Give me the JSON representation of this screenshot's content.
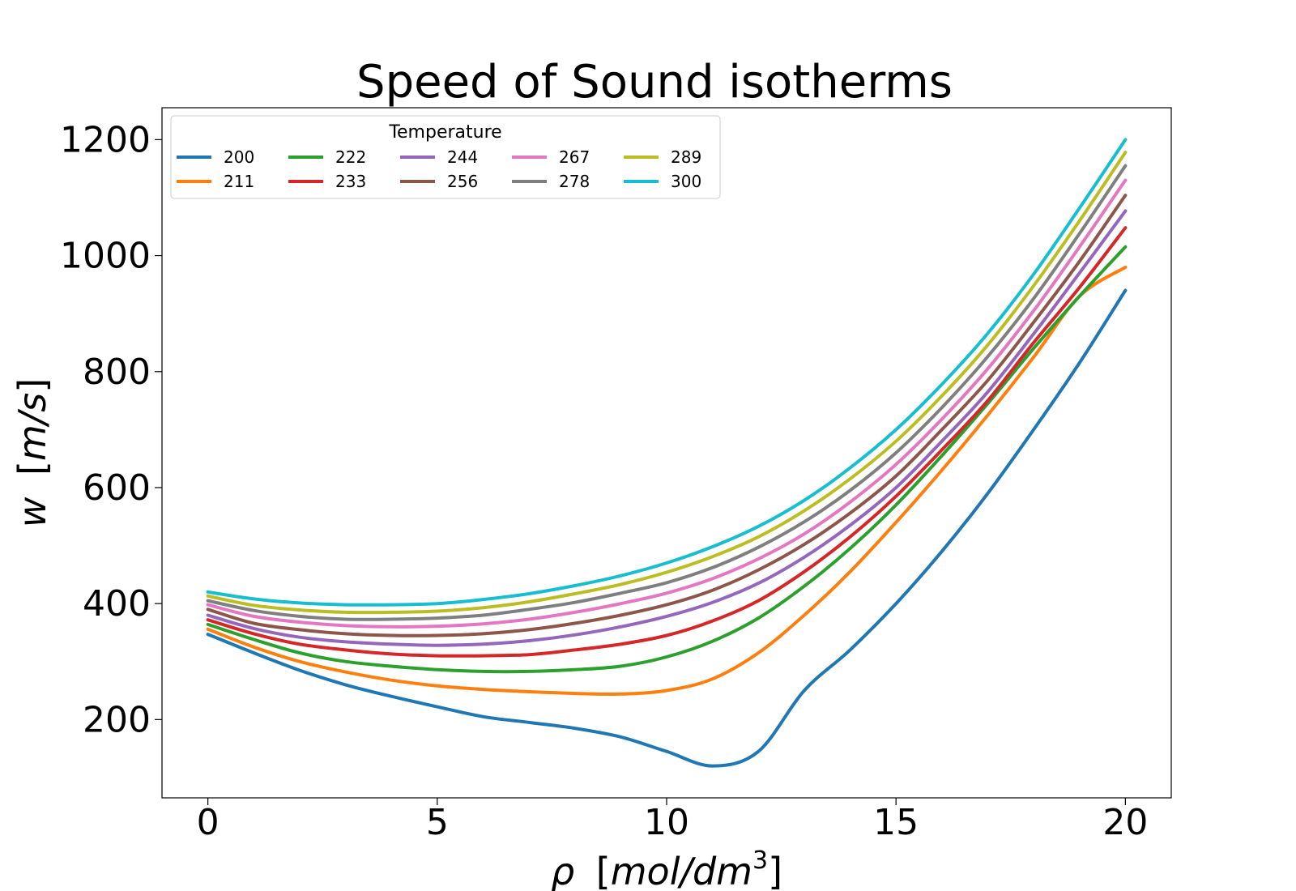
{
  "chart_data": {
    "type": "line",
    "title": "Speed of Sound isotherms",
    "xlabel": {
      "sym": "ρ",
      "unit_prefix": "[",
      "unit": "mol/dm",
      "sup": "3",
      "unit_suffix": "]"
    },
    "ylabel": {
      "sym": "w",
      "unit_prefix": "[",
      "unit": "m/s",
      "unit_suffix": "]"
    },
    "xlim": [
      -1,
      21
    ],
    "ylim": [
      65,
      1255
    ],
    "xticks": [
      0,
      5,
      10,
      15,
      20
    ],
    "yticks": [
      200,
      400,
      600,
      800,
      1000,
      1200
    ],
    "grid": false,
    "legend": {
      "title": "Temperature",
      "position": "top-left",
      "columns": 5
    },
    "x": [
      0,
      1,
      2,
      3,
      4,
      5,
      6,
      7,
      8,
      9,
      10,
      11,
      12,
      13,
      14,
      15,
      16,
      17,
      18,
      19,
      20
    ],
    "series": [
      {
        "name": "200",
        "color": "#1f77b4",
        "values": [
          347,
          315,
          285,
          260,
          240,
          222,
          205,
          195,
          185,
          170,
          145,
          120,
          145,
          250,
          320,
          400,
          490,
          590,
          700,
          815,
          940
        ]
      },
      {
        "name": "211",
        "color": "#ff7f0e",
        "values": [
          356,
          325,
          300,
          282,
          268,
          258,
          252,
          248,
          245,
          244,
          250,
          270,
          315,
          380,
          455,
          540,
          630,
          725,
          825,
          930,
          980
        ]
      },
      {
        "name": "222",
        "color": "#2ca02c",
        "values": [
          364,
          338,
          315,
          300,
          292,
          286,
          283,
          283,
          286,
          292,
          308,
          335,
          375,
          430,
          495,
          570,
          655,
          745,
          840,
          930,
          1015
        ]
      },
      {
        "name": "233",
        "color": "#d62728",
        "values": [
          372,
          348,
          330,
          320,
          313,
          310,
          310,
          312,
          320,
          330,
          345,
          370,
          405,
          455,
          515,
          585,
          665,
          750,
          850,
          945,
          1048
        ]
      },
      {
        "name": "244",
        "color": "#9467bd",
        "values": [
          380,
          357,
          342,
          334,
          330,
          328,
          330,
          336,
          346,
          360,
          378,
          402,
          435,
          480,
          535,
          600,
          680,
          765,
          865,
          970,
          1077
        ]
      },
      {
        "name": "256",
        "color": "#8c564b",
        "values": [
          390,
          366,
          355,
          348,
          345,
          345,
          348,
          355,
          366,
          380,
          398,
          423,
          458,
          502,
          556,
          620,
          700,
          785,
          885,
          990,
          1104
        ]
      },
      {
        "name": "267",
        "color": "#e377c2",
        "values": [
          398,
          378,
          368,
          362,
          360,
          361,
          365,
          373,
          385,
          400,
          418,
          443,
          477,
          520,
          575,
          640,
          718,
          805,
          905,
          1015,
          1130
        ]
      },
      {
        "name": "278",
        "color": "#7f7f7f",
        "values": [
          405,
          388,
          378,
          373,
          373,
          375,
          380,
          390,
          402,
          418,
          436,
          462,
          497,
          541,
          595,
          660,
          738,
          826,
          926,
          1038,
          1155
        ]
      },
      {
        "name": "289",
        "color": "#bcbd22",
        "values": [
          413,
          397,
          389,
          385,
          385,
          387,
          393,
          403,
          417,
          433,
          454,
          481,
          515,
          560,
          615,
          680,
          758,
          846,
          948,
          1060,
          1178
        ]
      },
      {
        "name": "300",
        "color": "#17becf",
        "values": [
          420,
          408,
          401,
          398,
          398,
          400,
          407,
          417,
          431,
          448,
          470,
          498,
          533,
          578,
          634,
          700,
          778,
          866,
          968,
          1082,
          1200
        ]
      }
    ]
  }
}
